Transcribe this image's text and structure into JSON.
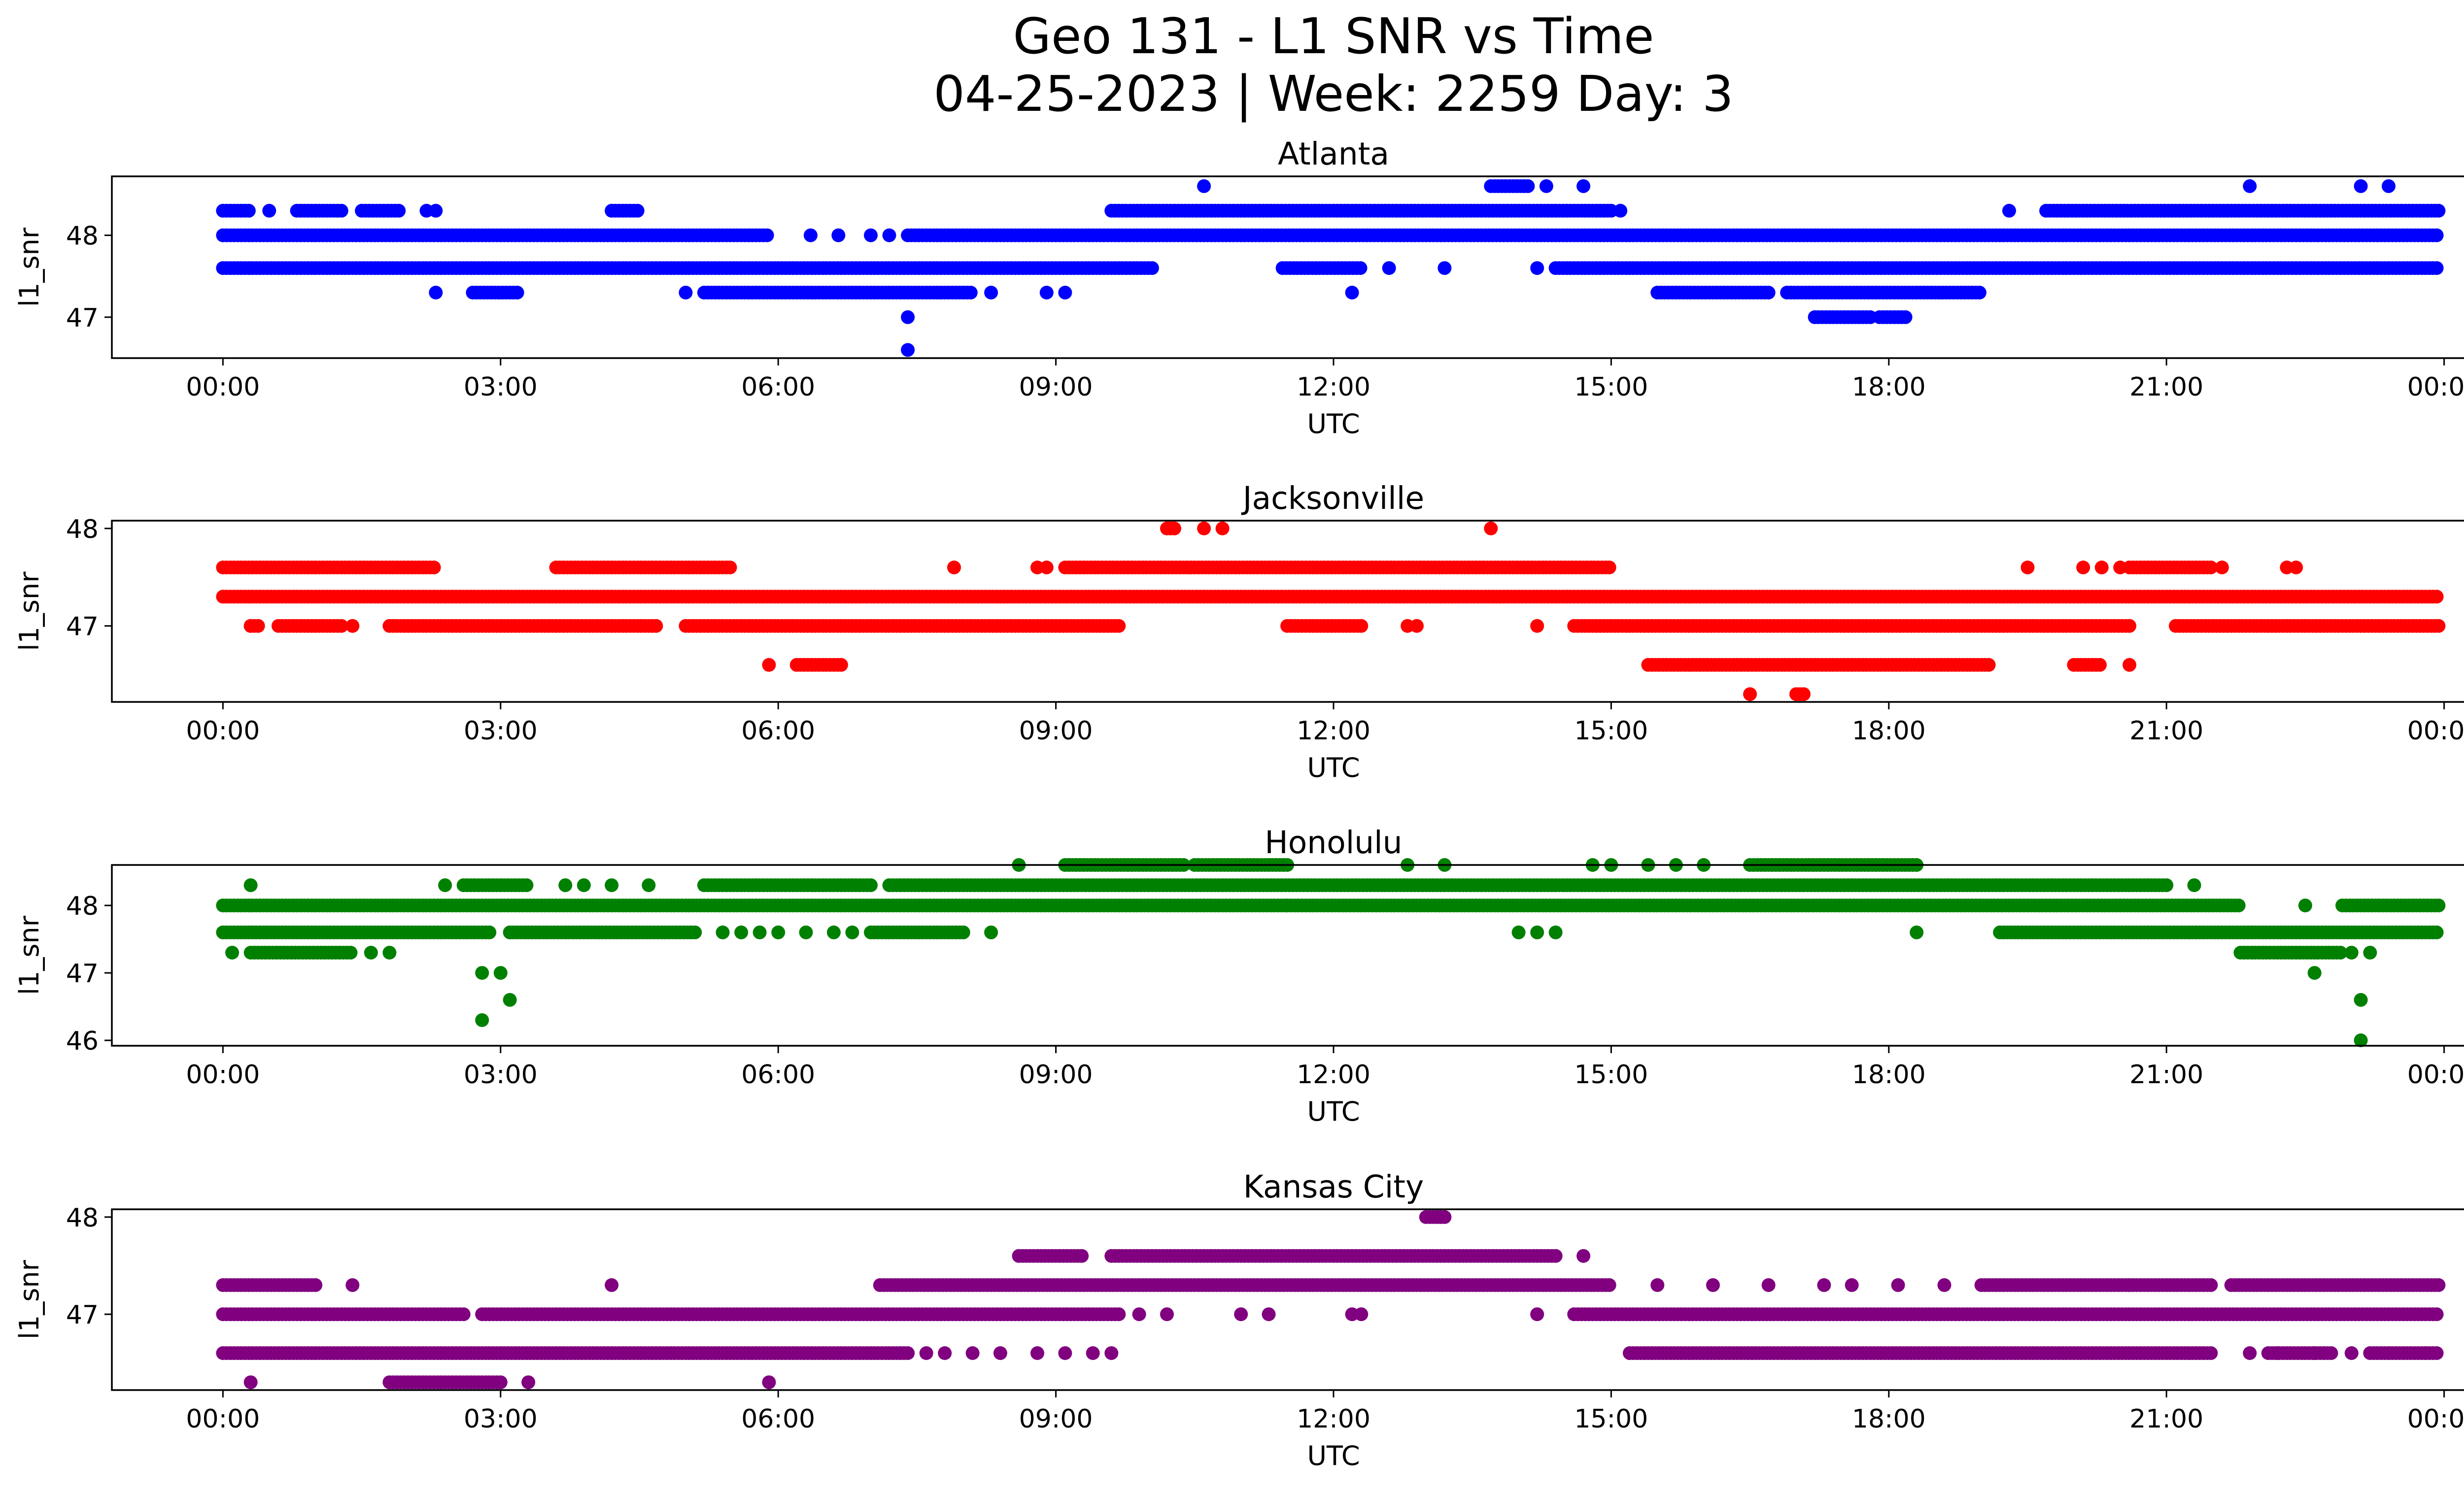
{
  "figure": {
    "title_line1": "Geo 131 - L1 SNR vs Time",
    "title_line2": "04-25-2023 | Week: 2259 Day: 3"
  },
  "chart_data": [
    {
      "type": "scatter",
      "title": "Atlanta",
      "color": "#0000ff",
      "xlabel": "UTC",
      "ylabel": "l1_snr",
      "xticks": [
        "00:00",
        "03:00",
        "06:00",
        "09:00",
        "12:00",
        "15:00",
        "18:00",
        "21:00",
        "00:00"
      ],
      "xlim_hours": [
        -1.2,
        25.2
      ],
      "yticks": [
        47,
        48
      ],
      "ylim": [
        46.5,
        48.72
      ],
      "grid": false,
      "series": [
        {
          "y": 48.0,
          "x_ranges": [
            [
              0.0,
              5.9
            ],
            [
              7.4,
              23.95
            ]
          ],
          "x_points": [
            6.35,
            6.65,
            7.0,
            7.2
          ]
        },
        {
          "y": 47.6,
          "x_ranges": [
            [
              0.0,
              10.05
            ],
            [
              11.45,
              12.3
            ],
            [
              14.4,
              23.95
            ]
          ],
          "x_points": [
            12.6,
            13.2,
            14.2
          ]
        },
        {
          "y": 48.3,
          "x_ranges": [
            [
              0.0,
              0.3
            ],
            [
              0.8,
              1.3
            ],
            [
              1.5,
              1.9
            ],
            [
              4.2,
              4.5
            ],
            [
              9.6,
              15.0
            ],
            [
              19.7,
              23.95
            ]
          ],
          "x_points": [
            0.5,
            2.2,
            2.3,
            15.1,
            19.3
          ]
        },
        {
          "y": 47.3,
          "x_ranges": [
            [
              2.7,
              3.2
            ],
            [
              5.2,
              8.1
            ],
            [
              15.5,
              16.7
            ],
            [
              16.9,
              19.0
            ]
          ],
          "x_points": [
            2.3,
            5.0,
            8.3,
            8.9,
            9.1,
            12.2
          ]
        },
        {
          "y": 48.6,
          "x_ranges": [
            [
              13.7,
              14.1
            ]
          ],
          "x_points": [
            10.6,
            14.3,
            14.7,
            21.9,
            23.1,
            23.4
          ]
        },
        {
          "y": 47.0,
          "x_ranges": [
            [
              17.2,
              17.8
            ],
            [
              17.9,
              18.2
            ]
          ],
          "x_points": [
            7.4
          ]
        },
        {
          "y": 46.6,
          "x_ranges": [],
          "x_points": [
            7.4
          ]
        }
      ]
    },
    {
      "type": "scatter",
      "title": "Jacksonville",
      "color": "#ff0000",
      "xlabel": "UTC",
      "ylabel": "l1_snr",
      "xticks": [
        "00:00",
        "03:00",
        "06:00",
        "09:00",
        "12:00",
        "15:00",
        "18:00",
        "21:00",
        "00:00"
      ],
      "xlim_hours": [
        -1.2,
        25.2
      ],
      "yticks": [
        47,
        48
      ],
      "ylim": [
        46.22,
        48.08
      ],
      "grid": false,
      "series": [
        {
          "y": 47.3,
          "x_ranges": [
            [
              0.0,
              23.95
            ]
          ],
          "x_points": []
        },
        {
          "y": 47.6,
          "x_ranges": [
            [
              0.0,
              2.3
            ],
            [
              3.6,
              5.5
            ],
            [
              9.1,
              15.0
            ]
          ],
          "x_points": [
            7.9,
            8.8,
            8.9,
            19.5,
            20.1,
            20.3,
            20.5,
            22.3,
            22.4
          ]
        },
        {
          "y": 47.6,
          "x_ranges": [
            [
              20.6,
              21.5
            ]
          ],
          "x_points": [
            21.6
          ]
        },
        {
          "y": 47.0,
          "x_ranges": [
            [
              0.3,
              0.4
            ],
            [
              0.6,
              1.3
            ],
            [
              1.8,
              4.7
            ],
            [
              5.0,
              9.7
            ],
            [
              11.5,
              12.3
            ],
            [
              14.6,
              20.6
            ],
            [
              21.1,
              23.95
            ]
          ],
          "x_points": [
            0.3,
            1.4,
            12.8,
            12.9,
            14.2
          ]
        },
        {
          "y": 46.6,
          "x_ranges": [
            [
              15.4,
              19.1
            ],
            [
              20.0,
              20.3
            ],
            [
              6.2,
              6.7
            ]
          ],
          "x_points": [
            5.9,
            20.6
          ]
        },
        {
          "y": 48.0,
          "x_ranges": [
            [
              10.2,
              10.3
            ]
          ],
          "x_points": [
            10.6,
            10.8,
            13.7
          ]
        },
        {
          "y": 46.3,
          "x_ranges": [
            [
              17.0,
              17.1
            ]
          ],
          "x_points": [
            16.5
          ]
        }
      ]
    },
    {
      "type": "scatter",
      "title": "Honolulu",
      "color": "#008000",
      "xlabel": "UTC",
      "ylabel": "l1_snr",
      "xticks": [
        "00:00",
        "03:00",
        "06:00",
        "09:00",
        "12:00",
        "15:00",
        "18:00",
        "21:00",
        "00:00"
      ],
      "xlim_hours": [
        -1.2,
        25.2
      ],
      "yticks": [
        46,
        47,
        48
      ],
      "ylim": [
        45.92,
        48.6
      ],
      "grid": false,
      "series": [
        {
          "y": 48.0,
          "x_ranges": [
            [
              0.0,
              11.5
            ],
            [
              11.5,
              21.8
            ],
            [
              22.9,
              23.95
            ]
          ],
          "x_points": [
            22.5
          ]
        },
        {
          "y": 47.6,
          "x_ranges": [
            [
              0.0,
              2.9
            ],
            [
              3.1,
              5.1
            ],
            [
              7.0,
              8.0
            ],
            [
              19.2,
              23.95
            ]
          ],
          "x_points": [
            5.4,
            5.6,
            5.8,
            6.0,
            6.3,
            6.6,
            6.8,
            8.3,
            14.0,
            14.2,
            14.4,
            18.3
          ]
        },
        {
          "y": 48.3,
          "x_ranges": [
            [
              2.6,
              3.3
            ],
            [
              5.2,
              7.0
            ],
            [
              7.2,
              21.0
            ]
          ],
          "x_points": [
            0.3,
            2.4,
            3.7,
            3.9,
            4.2,
            4.6,
            21.3
          ]
        },
        {
          "y": 47.3,
          "x_ranges": [
            [
              0.3,
              1.4
            ],
            [
              21.8,
              22.9
            ]
          ],
          "x_points": [
            0.1,
            1.6,
            1.8,
            23.0,
            23.2
          ]
        },
        {
          "y": 48.6,
          "x_ranges": [
            [
              9.1,
              10.4
            ],
            [
              10.5,
              11.5
            ],
            [
              16.5,
              18.3
            ]
          ],
          "x_points": [
            8.6,
            12.8,
            13.2,
            14.8,
            15.0,
            15.4,
            15.7,
            16.0
          ]
        },
        {
          "y": 47.0,
          "x_ranges": [],
          "x_points": [
            2.8,
            3.0,
            22.6
          ]
        },
        {
          "y": 46.6,
          "x_ranges": [],
          "x_points": [
            3.1,
            23.1
          ]
        },
        {
          "y": 46.3,
          "x_ranges": [],
          "x_points": [
            2.8
          ]
        },
        {
          "y": 46.0,
          "x_ranges": [],
          "x_points": [
            23.1
          ]
        }
      ]
    },
    {
      "type": "scatter",
      "title": "Kansas City",
      "color": "#800080",
      "xlabel": "UTC",
      "ylabel": "l1_snr",
      "xticks": [
        "00:00",
        "03:00",
        "06:00",
        "09:00",
        "12:00",
        "15:00",
        "18:00",
        "21:00",
        "00:00"
      ],
      "xlim_hours": [
        -1.2,
        25.2
      ],
      "yticks": [
        47,
        48
      ],
      "ylim": [
        46.22,
        48.08
      ],
      "grid": false,
      "series": [
        {
          "y": 47.0,
          "x_ranges": [
            [
              0.0,
              2.6
            ],
            [
              2.8,
              9.7
            ],
            [
              14.6,
              23.95
            ]
          ],
          "x_points": [
            9.9,
            10.2,
            11.0,
            11.3,
            12.2,
            12.3,
            14.2
          ]
        },
        {
          "y": 46.6,
          "x_ranges": [
            [
              0.0,
              7.4
            ],
            [
              15.2,
              21.5
            ]
          ],
          "x_points": [
            7.6,
            7.8,
            8.1,
            8.4,
            8.8,
            9.1,
            9.4,
            9.6,
            21.9,
            22.2,
            22.6,
            23.0,
            23.4,
            23.8
          ]
        },
        {
          "y": 46.6,
          "x_ranges": [
            [
              22.1,
              22.8
            ],
            [
              23.2,
              23.95
            ]
          ],
          "x_points": []
        },
        {
          "y": 47.3,
          "x_ranges": [
            [
              0.0,
              1.0
            ],
            [
              7.1,
              15.0
            ],
            [
              19.0,
              21.5
            ],
            [
              21.7,
              23.95
            ]
          ],
          "x_points": [
            1.4,
            4.2,
            15.5,
            16.1,
            16.7,
            17.3,
            17.6,
            18.1,
            18.6,
            20.6
          ]
        },
        {
          "y": 47.6,
          "x_ranges": [
            [
              8.6,
              9.3
            ],
            [
              9.6,
              14.4
            ]
          ],
          "x_points": [
            14.7
          ]
        },
        {
          "y": 46.3,
          "x_ranges": [
            [
              1.8,
              3.0
            ]
          ],
          "x_points": [
            0.3,
            3.3,
            5.9
          ]
        },
        {
          "y": 48.0,
          "x_ranges": [
            [
              13.0,
              13.2
            ]
          ],
          "x_points": []
        }
      ]
    }
  ]
}
